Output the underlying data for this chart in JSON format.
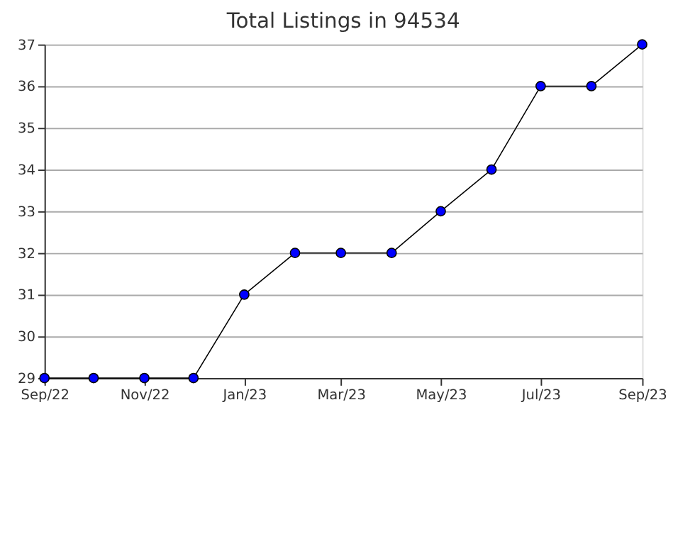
{
  "chart_data": {
    "type": "line",
    "title": "Total Listings in 94534",
    "x": [
      "2022-09",
      "2022-10",
      "2022-11",
      "2022-12",
      "2023-01",
      "2023-02",
      "2023-03",
      "2023-04",
      "2023-05",
      "2023-06",
      "2023-07",
      "2023-08",
      "2023-09"
    ],
    "series": [
      {
        "color": "#0000ff",
        "values": [
          29,
          29,
          29,
          29,
          31,
          32,
          32,
          32,
          33,
          34,
          36,
          36,
          37
        ]
      }
    ],
    "xlim": [
      "2022-09",
      "2023-09"
    ],
    "xticks": [
      {
        "value": "2022-09",
        "label": "Sep/22"
      },
      {
        "value": "2022-11",
        "label": "Nov/22"
      },
      {
        "value": "2023-01",
        "label": "Jan/23"
      },
      {
        "value": "2023-03",
        "label": "Mar/23"
      },
      {
        "value": "2023-05",
        "label": "May/23"
      },
      {
        "value": "2023-07",
        "label": "Jul/23"
      },
      {
        "value": "2023-09",
        "label": "Sep/23"
      }
    ],
    "ylim": [
      29,
      37
    ],
    "yticks": [
      29,
      30,
      31,
      32,
      33,
      34,
      35,
      36,
      37
    ],
    "grid": "y",
    "marker": "circle",
    "line_style": "solid"
  }
}
